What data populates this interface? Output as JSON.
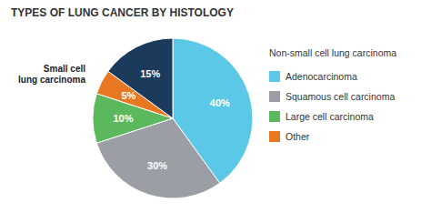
{
  "chart_data": {
    "type": "pie",
    "title": "TYPES OF LUNG CANCER BY HISTOLOGY",
    "categories": [
      "Adenocarcinoma",
      "Squamous cell carcinoma",
      "Large cell carcinoma",
      "Other",
      null
    ],
    "values": [
      40,
      30,
      10,
      5,
      15
    ],
    "value_labels": [
      "40%",
      "30%",
      "10%",
      "5%",
      "15%"
    ],
    "data_labels": true,
    "colors": [
      "#5BC8E8",
      "#9B9EA4",
      "#5CB85C",
      "#E87722",
      "#1B3A5C"
    ],
    "legend": "right",
    "legend_title": "Non-small cell lung carcinoma",
    "annotations": [
      "Small cell\nlung carcinoma"
    ]
  }
}
